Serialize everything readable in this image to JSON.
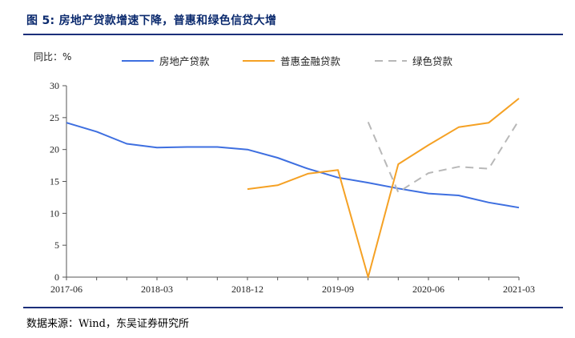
{
  "header": {
    "title": "图 5: 房地产贷款增速下降，普惠和绿色信贷大增"
  },
  "footer": {
    "source": "数据来源：Wind，东吴证券研究所"
  },
  "chart_data": {
    "type": "line",
    "title": "图 5: 房地产贷款增速下降，普惠和绿色信贷大增",
    "ylabel": "同比：%",
    "xlabel": "",
    "ylim": [
      0,
      30
    ],
    "yticks": [
      0,
      5,
      10,
      15,
      20,
      25,
      30
    ],
    "x_tick_labels": [
      "2017-06",
      "2018-03",
      "2018-12",
      "2019-09",
      "2020-06",
      "2021-03"
    ],
    "legend_position": "top",
    "grid": false,
    "series": [
      {
        "name": "房地产贷款",
        "color": "#3e6fe0",
        "dash": "solid",
        "points": [
          {
            "x": "2017-06",
            "y": 24.2
          },
          {
            "x": "2017-09",
            "y": 22.8
          },
          {
            "x": "2017-12",
            "y": 20.9
          },
          {
            "x": "2018-03",
            "y": 20.3
          },
          {
            "x": "2018-06",
            "y": 20.4
          },
          {
            "x": "2018-09",
            "y": 20.4
          },
          {
            "x": "2018-12",
            "y": 20.0
          },
          {
            "x": "2019-03",
            "y": 18.7
          },
          {
            "x": "2019-06",
            "y": 17.0
          },
          {
            "x": "2019-09",
            "y": 15.6
          },
          {
            "x": "2019-12",
            "y": 14.8
          },
          {
            "x": "2020-03",
            "y": 13.9
          },
          {
            "x": "2020-06",
            "y": 13.1
          },
          {
            "x": "2020-09",
            "y": 12.8
          },
          {
            "x": "2020-12",
            "y": 11.7
          },
          {
            "x": "2021-03",
            "y": 10.9
          }
        ]
      },
      {
        "name": "普惠金融贷款",
        "color": "#f5a124",
        "dash": "solid",
        "points": [
          {
            "x": "2018-12",
            "y": 13.8
          },
          {
            "x": "2019-03",
            "y": 14.4
          },
          {
            "x": "2019-06",
            "y": 16.2
          },
          {
            "x": "2019-09",
            "y": 16.8
          },
          {
            "x": "2019-12",
            "y": 0
          },
          {
            "x": "2020-03",
            "y": 17.7
          },
          {
            "x": "2020-06",
            "y": 20.7
          },
          {
            "x": "2020-09",
            "y": 23.5
          },
          {
            "x": "2020-12",
            "y": 24.2
          },
          {
            "x": "2021-03",
            "y": 28.0
          }
        ]
      },
      {
        "name": "绿色贷款",
        "color": "#b8b8b8",
        "dash": "dashed",
        "points": [
          {
            "x": "2019-12",
            "y": 24.3
          },
          {
            "x": "2020-03",
            "y": 13.3
          },
          {
            "x": "2020-06",
            "y": 16.3
          },
          {
            "x": "2020-09",
            "y": 17.3
          },
          {
            "x": "2020-12",
            "y": 17.0
          },
          {
            "x": "2021-03",
            "y": 24.6
          }
        ]
      }
    ]
  }
}
